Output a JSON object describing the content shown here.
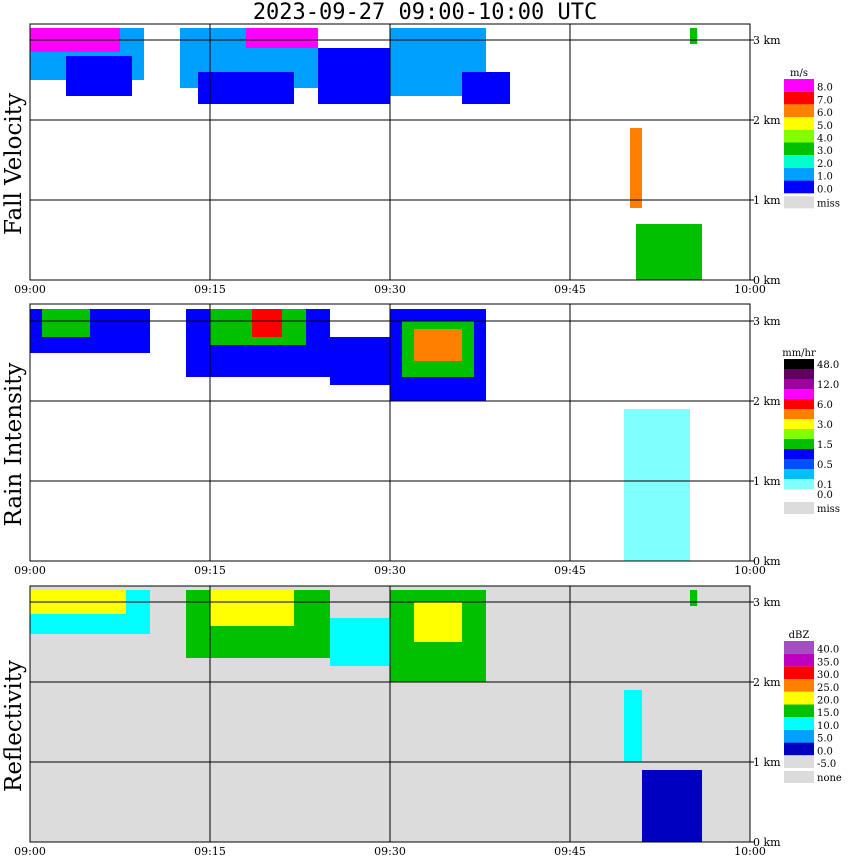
{
  "title": "2023-09-27  09:00-10:00 UTC",
  "chart_data": [
    {
      "type": "heatmap",
      "title": "Fall Velocity",
      "ylabel": "Fall Velocity",
      "x_ticks": [
        "09:00",
        "09:15",
        "09:30",
        "09:45",
        "10:00"
      ],
      "y_ticks": [
        "0 km",
        "1 km",
        "2 km",
        "3 km"
      ],
      "xlim": [
        "09:00",
        "10:00"
      ],
      "ylim": [
        0,
        3.2
      ],
      "grid": true,
      "background": "#ffffff",
      "legend": {
        "unit": "m/s",
        "levels": [
          {
            "label": "8.0",
            "color": "#ff00ff"
          },
          {
            "label": "7.0",
            "color": "#ff0000"
          },
          {
            "label": "6.0",
            "color": "#ff8000"
          },
          {
            "label": "5.0",
            "color": "#ffff00"
          },
          {
            "label": "4.0",
            "color": "#80ff00"
          },
          {
            "label": "3.0",
            "color": "#00c000"
          },
          {
            "label": "2.0",
            "color": "#00ffcc"
          },
          {
            "label": "1.0",
            "color": "#00a0ff"
          },
          {
            "label": "0.0",
            "color": "#0000ff"
          }
        ],
        "missing": {
          "label": "miss",
          "color": "#dcdcdc"
        }
      },
      "regions": [
        {
          "t": [
            0.0,
            9.5
          ],
          "z": [
            2.5,
            3.15
          ],
          "color": "#00a0ff"
        },
        {
          "t": [
            0.0,
            7.5
          ],
          "z": [
            2.85,
            3.15
          ],
          "color": "#ff00ff"
        },
        {
          "t": [
            3.0,
            8.5
          ],
          "z": [
            2.3,
            2.8
          ],
          "color": "#0000ff"
        },
        {
          "t": [
            12.5,
            24.0
          ],
          "z": [
            2.4,
            3.15
          ],
          "color": "#00a0ff"
        },
        {
          "t": [
            18.0,
            24.0
          ],
          "z": [
            2.9,
            3.15
          ],
          "color": "#ff00ff"
        },
        {
          "t": [
            14.0,
            22.0
          ],
          "z": [
            2.2,
            2.6
          ],
          "color": "#0000ff"
        },
        {
          "t": [
            24.0,
            30.0
          ],
          "z": [
            2.2,
            2.9
          ],
          "color": "#0000ff"
        },
        {
          "t": [
            30.0,
            38.0
          ],
          "z": [
            2.3,
            3.15
          ],
          "color": "#00a0ff"
        },
        {
          "t": [
            36.0,
            40.0
          ],
          "z": [
            2.2,
            2.6
          ],
          "color": "#0000ff"
        },
        {
          "t": [
            50.0,
            51.0
          ],
          "z": [
            0.9,
            1.9
          ],
          "color": "#ff8000"
        },
        {
          "t": [
            50.5,
            56.0
          ],
          "z": [
            0.0,
            0.7
          ],
          "color": "#00c000"
        },
        {
          "t": [
            55.0,
            55.6
          ],
          "z": [
            2.95,
            3.15
          ],
          "color": "#00c000"
        }
      ]
    },
    {
      "type": "heatmap",
      "title": "Rain Intensity",
      "ylabel": "Rain Intensity",
      "x_ticks": [
        "09:00",
        "09:15",
        "09:30",
        "09:45",
        "10:00"
      ],
      "y_ticks": [
        "0 km",
        "1 km",
        "2 km",
        "3 km"
      ],
      "xlim": [
        "09:00",
        "10:00"
      ],
      "ylim": [
        0,
        3.2
      ],
      "grid": true,
      "background": "#ffffff",
      "legend": {
        "unit": "mm/hr",
        "levels": [
          {
            "label": "48.0",
            "color": "#000000"
          },
          {
            "label": "",
            "color": "#600060"
          },
          {
            "label": "12.0",
            "color": "#a000a0"
          },
          {
            "label": "",
            "color": "#ff00ff"
          },
          {
            "label": "6.0",
            "color": "#ff0000"
          },
          {
            "label": "",
            "color": "#ff8000"
          },
          {
            "label": "3.0",
            "color": "#ffff00"
          },
          {
            "label": "",
            "color": "#80ff00"
          },
          {
            "label": "1.5",
            "color": "#00c000"
          },
          {
            "label": "",
            "color": "#0000ff"
          },
          {
            "label": "0.5",
            "color": "#0050ff"
          },
          {
            "label": "",
            "color": "#00c0ff"
          },
          {
            "label": "0.1",
            "color": "#80ffff"
          },
          {
            "label": "0.0",
            "color": "#ffffff"
          }
        ],
        "missing": {
          "label": "miss",
          "color": "#dcdcdc"
        }
      },
      "regions": [
        {
          "t": [
            0.0,
            10.0
          ],
          "z": [
            2.6,
            3.15
          ],
          "color": "#0000ff"
        },
        {
          "t": [
            1.0,
            5.0
          ],
          "z": [
            2.8,
            3.15
          ],
          "color": "#00c000"
        },
        {
          "t": [
            13.0,
            25.0
          ],
          "z": [
            2.3,
            3.15
          ],
          "color": "#0000ff"
        },
        {
          "t": [
            15.0,
            23.0
          ],
          "z": [
            2.7,
            3.15
          ],
          "color": "#00c000"
        },
        {
          "t": [
            18.5,
            21.0
          ],
          "z": [
            2.8,
            3.15
          ],
          "color": "#ff0000"
        },
        {
          "t": [
            25.0,
            30.0
          ],
          "z": [
            2.2,
            2.8
          ],
          "color": "#0000ff"
        },
        {
          "t": [
            30.0,
            38.0
          ],
          "z": [
            2.0,
            3.15
          ],
          "color": "#0000ff"
        },
        {
          "t": [
            31.0,
            37.0
          ],
          "z": [
            2.3,
            3.0
          ],
          "color": "#00c000"
        },
        {
          "t": [
            32.0,
            36.0
          ],
          "z": [
            2.5,
            2.9
          ],
          "color": "#ff8000"
        },
        {
          "t": [
            49.5,
            55.0
          ],
          "z": [
            0.0,
            1.9
          ],
          "color": "#80ffff"
        }
      ]
    },
    {
      "type": "heatmap",
      "title": "Reflectivity",
      "ylabel": "Reflectivity",
      "x_ticks": [
        "09:00",
        "09:15",
        "09:30",
        "09:45",
        "10:00"
      ],
      "y_ticks": [
        "0 km",
        "1 km",
        "2 km",
        "3 km"
      ],
      "xlim": [
        "09:00",
        "10:00"
      ],
      "ylim": [
        0,
        3.2
      ],
      "grid": true,
      "background": "#dcdcdc",
      "legend": {
        "unit": "dBZ",
        "levels": [
          {
            "label": "40.0",
            "color": "#a050c0"
          },
          {
            "label": "35.0",
            "color": "#c000c0"
          },
          {
            "label": "30.0",
            "color": "#ff0000"
          },
          {
            "label": "25.0",
            "color": "#ff8000"
          },
          {
            "label": "20.0",
            "color": "#ffff00"
          },
          {
            "label": "15.0",
            "color": "#00c000"
          },
          {
            "label": "10.0",
            "color": "#00ffff"
          },
          {
            "label": "5.0",
            "color": "#00a0ff"
          },
          {
            "label": "0.0",
            "color": "#0000c0"
          },
          {
            "label": "-5.0",
            "color": "#dcdcdc"
          }
        ],
        "missing": {
          "label": "none",
          "color": "#dcdcdc"
        }
      },
      "regions": [
        {
          "t": [
            0.0,
            10.0
          ],
          "z": [
            2.6,
            3.15
          ],
          "color": "#00ffff"
        },
        {
          "t": [
            0.0,
            8.0
          ],
          "z": [
            2.85,
            3.15
          ],
          "color": "#ffff00"
        },
        {
          "t": [
            13.0,
            25.0
          ],
          "z": [
            2.3,
            3.15
          ],
          "color": "#00c000"
        },
        {
          "t": [
            15.0,
            22.0
          ],
          "z": [
            2.7,
            3.15
          ],
          "color": "#ffff00"
        },
        {
          "t": [
            25.0,
            30.0
          ],
          "z": [
            2.2,
            2.8
          ],
          "color": "#00ffff"
        },
        {
          "t": [
            30.0,
            38.0
          ],
          "z": [
            2.0,
            3.15
          ],
          "color": "#00c000"
        },
        {
          "t": [
            32.0,
            36.0
          ],
          "z": [
            2.5,
            3.0
          ],
          "color": "#ffff00"
        },
        {
          "t": [
            49.5,
            51.0
          ],
          "z": [
            1.0,
            1.9
          ],
          "color": "#00ffff"
        },
        {
          "t": [
            51.0,
            56.0
          ],
          "z": [
            0.0,
            0.9
          ],
          "color": "#0000c0"
        },
        {
          "t": [
            55.0,
            55.6
          ],
          "z": [
            2.95,
            3.15
          ],
          "color": "#00c000"
        }
      ]
    }
  ]
}
